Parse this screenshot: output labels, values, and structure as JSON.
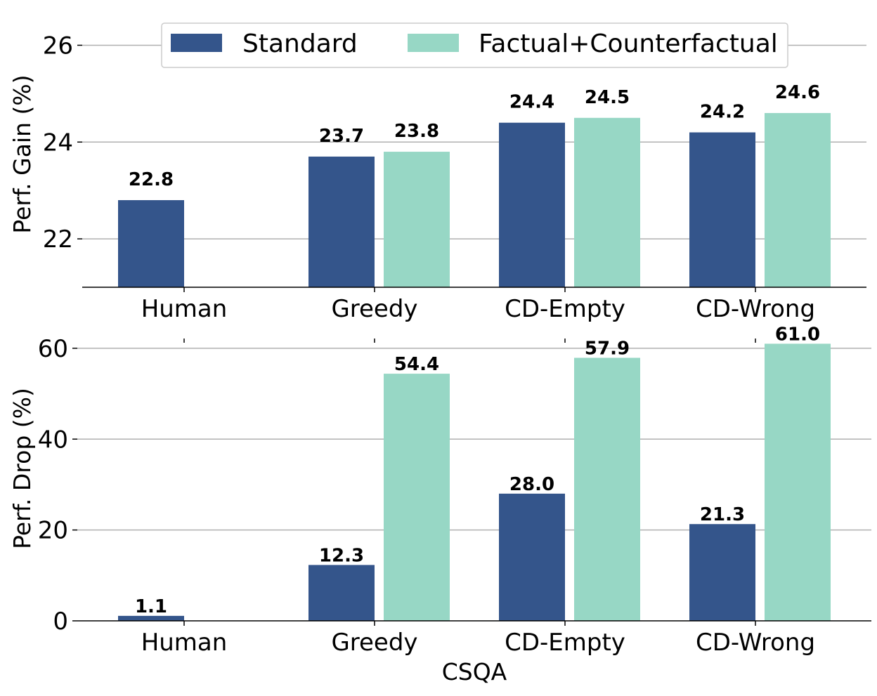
{
  "chart_data": {
    "type": "bar",
    "xlabel": "CSQA",
    "categories": [
      "Human",
      "Greedy",
      "CD-Empty",
      "CD-Wrong"
    ],
    "legend": {
      "position": "top-center",
      "entries": [
        {
          "name": "Standard",
          "color": "#34558b"
        },
        {
          "name": "Factual+Counterfactual",
          "color": "#97d7c5"
        }
      ]
    },
    "panels": [
      {
        "ylabel": "Perf. Gain (%)",
        "ylim": [
          21,
          26.5
        ],
        "yticks": [
          "22",
          "24",
          "26"
        ],
        "grid": true,
        "series": [
          {
            "name": "Standard",
            "values": [
              22.8,
              23.7,
              24.4,
              24.2
            ],
            "labels": [
              "22.8",
              "23.7",
              "24.4",
              "24.2"
            ]
          },
          {
            "name": "Factual+Counterfactual",
            "values": [
              null,
              23.8,
              24.5,
              24.6
            ],
            "labels": [
              "",
              "23.8",
              "24.5",
              "24.6"
            ]
          }
        ]
      },
      {
        "ylabel": "Perf. Drop (%)",
        "ylim": [
          0,
          64
        ],
        "yticks": [
          "0",
          "20",
          "40",
          "60"
        ],
        "grid": true,
        "series": [
          {
            "name": "Standard",
            "values": [
              1.1,
              12.3,
              28.0,
              21.3
            ],
            "labels": [
              "1.1",
              "12.3",
              "28.0",
              "21.3"
            ]
          },
          {
            "name": "Factual+Counterfactual",
            "values": [
              null,
              54.4,
              57.9,
              61.0
            ],
            "labels": [
              "",
              "54.4",
              "57.9",
              "61.0"
            ]
          }
        ]
      }
    ]
  }
}
